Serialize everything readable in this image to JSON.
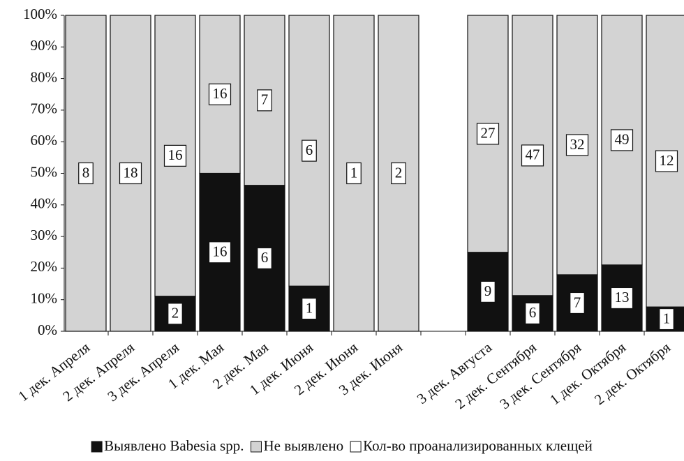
{
  "chart_data": {
    "type": "stacked_bar_percent",
    "categories": [
      "1 дек. Апреля",
      "2 дек. Апреля",
      "3 дек. Апреля",
      "1 дек. Мая",
      "2 дек. Мая",
      "1 дек. Июня",
      "2 дек. Июня",
      "3 дек. Июня",
      null,
      "3 дек. Августа",
      "2 дек. Сентября",
      "3 дек. Сентября",
      "1 дек. Октября",
      "2 дек. Октября"
    ],
    "series": [
      {
        "name": "Выявлено Babesia spp.",
        "color": "#111111",
        "values": [
          0,
          0,
          11.1,
          50,
          46.2,
          14.3,
          0,
          0,
          null,
          25,
          11.3,
          17.9,
          21,
          7.7
        ],
        "counts": [
          null,
          null,
          2,
          16,
          6,
          1,
          null,
          null,
          null,
          9,
          6,
          7,
          13,
          1
        ]
      },
      {
        "name": "Не выявлено",
        "color": "#d3d3d3",
        "values": [
          100,
          100,
          88.9,
          50,
          53.8,
          85.7,
          100,
          100,
          null,
          75,
          88.7,
          82.1,
          79,
          92.3
        ],
        "counts": [
          8,
          18,
          16,
          16,
          7,
          6,
          1,
          2,
          null,
          27,
          47,
          32,
          49,
          12
        ]
      }
    ],
    "count_legend": {
      "name": "Кол-во проанализированных клещей",
      "color": "#ffffff"
    },
    "ylim": [
      0,
      100
    ],
    "yticks": [
      {
        "value": 0,
        "label": "0%"
      },
      {
        "value": 10,
        "label": "10%"
      },
      {
        "value": 20,
        "label": "20%"
      },
      {
        "value": 30,
        "label": "30%"
      },
      {
        "value": 40,
        "label": "40%"
      },
      {
        "value": 50,
        "label": "50%"
      },
      {
        "value": 60,
        "label": "60%"
      },
      {
        "value": 70,
        "label": "70%"
      },
      {
        "value": 80,
        "label": "80%"
      },
      {
        "value": 90,
        "label": "90%"
      },
      {
        "value": 100,
        "label": "100%"
      }
    ]
  }
}
